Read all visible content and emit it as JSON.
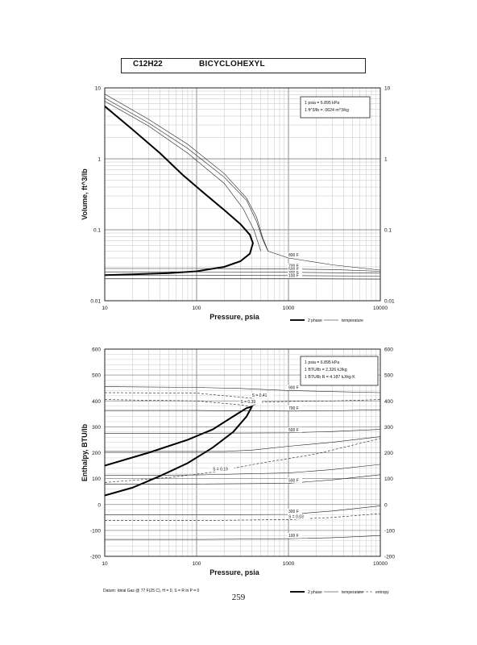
{
  "page": {
    "formula": "C12H22",
    "compound": "BICYCLOHEXYL",
    "page_number": "259"
  },
  "chart_data": [
    {
      "type": "line",
      "xscale": "log",
      "yscale": "log",
      "xlim": [
        10,
        10000
      ],
      "ylim": [
        0.01,
        10
      ],
      "xlabel": "Pressure,  psia",
      "ylabel": "Volume, ft^3/lb",
      "x_ticks": [
        10,
        100,
        1000,
        10000
      ],
      "x_tick_labels": [
        "10",
        "100",
        "1000",
        "10000"
      ],
      "y_ticks": [
        0.01,
        0.1,
        1,
        10
      ],
      "y_tick_labels": [
        "0.01",
        "0.1",
        "1",
        "10"
      ],
      "grid": true,
      "info_box": [
        "1 psia = 6.895 kPa",
        "1 ft^3/lb = .0624 m^3/kg"
      ],
      "legend": [
        "2 phase",
        "temperature"
      ],
      "series": [
        {
          "name": "2 phase",
          "style": "thick",
          "points": [
            [
              10,
              5.5
            ],
            [
              20,
              2.6
            ],
            [
              40,
              1.2
            ],
            [
              70,
              0.6
            ],
            [
              120,
              0.33
            ],
            [
              200,
              0.19
            ],
            [
              300,
              0.12
            ],
            [
              380,
              0.085
            ],
            [
              410,
              0.065
            ],
            [
              380,
              0.046
            ],
            [
              300,
              0.036
            ],
            [
              200,
              0.03
            ],
            [
              100,
              0.026
            ],
            [
              50,
              0.0245
            ],
            [
              20,
              0.0235
            ],
            [
              10,
              0.023
            ]
          ]
        },
        {
          "name": "temperature",
          "label": "800 F",
          "points": [
            [
              10,
              8.2
            ],
            [
              30,
              3.6
            ],
            [
              80,
              1.6
            ],
            [
              200,
              0.62
            ],
            [
              350,
              0.28
            ],
            [
              450,
              0.15
            ],
            [
              520,
              0.08
            ],
            [
              600,
              0.05
            ],
            [
              1000,
              0.04
            ],
            [
              3000,
              0.032
            ],
            [
              10000,
              0.027
            ]
          ]
        },
        {
          "name": "temperature",
          "label": "",
          "points": [
            [
              10,
              7.2
            ],
            [
              30,
              3.2
            ],
            [
              80,
              1.4
            ],
            [
              200,
              0.55
            ],
            [
              350,
              0.26
            ],
            [
              450,
              0.13
            ],
            [
              530,
              0.07
            ],
            [
              600,
              0.05
            ]
          ]
        },
        {
          "name": "temperature",
          "label": "",
          "points": [
            [
              10,
              6.5
            ],
            [
              30,
              2.9
            ],
            [
              80,
              1.2
            ],
            [
              200,
              0.45
            ],
            [
              320,
              0.2
            ],
            [
              420,
              0.1
            ],
            [
              500,
              0.05
            ]
          ]
        },
        {
          "name": "temperature",
          "label": "700 F",
          "points": [
            [
              10,
              0.0285
            ],
            [
              100,
              0.0285
            ],
            [
              500,
              0.0282
            ],
            [
              1000,
              0.028
            ],
            [
              3000,
              0.0275
            ],
            [
              10000,
              0.026
            ]
          ]
        },
        {
          "name": "temperature",
          "label": "500 F",
          "points": [
            [
              10,
              0.0255
            ],
            [
              100,
              0.0255
            ],
            [
              1000,
              0.0252
            ],
            [
              10000,
              0.0245
            ]
          ]
        },
        {
          "name": "temperature",
          "label": "300 F",
          "points": [
            [
              10,
              0.0228
            ],
            [
              100,
              0.0228
            ],
            [
              1000,
              0.0226
            ],
            [
              10000,
              0.0222
            ]
          ]
        },
        {
          "name": "temperature",
          "label": "100 F",
          "points": [
            [
              10,
              0.0206
            ],
            [
              100,
              0.0206
            ],
            [
              1000,
              0.0205
            ],
            [
              10000,
              0.0202
            ]
          ]
        }
      ]
    },
    {
      "type": "line",
      "xscale": "log",
      "yscale": "linear",
      "xlim": [
        10,
        10000
      ],
      "ylim": [
        -200,
        600
      ],
      "xlabel": "Pressure,  psia",
      "ylabel": "Enthalpy, BTU/lb",
      "x_ticks": [
        10,
        100,
        1000,
        10000
      ],
      "x_tick_labels": [
        "10",
        "100",
        "1000",
        "10000"
      ],
      "y_ticks": [
        -200,
        -100,
        0,
        100,
        200,
        300,
        400,
        500,
        600
      ],
      "y_tick_labels": [
        "-200",
        "-100",
        "0",
        "100",
        "200",
        "300",
        "400",
        "500",
        "600"
      ],
      "grid": true,
      "info_box": [
        "1 psia = 6.895 kPa",
        "1 BTU/lb = 2.326 kJ/kg",
        "1 BTU/lb R = 4.187 kJ/kg K"
      ],
      "footnote": "Datum: Ideal Gas @ 77 F(25 C), H = 0, S = R ln P = 0",
      "legend": [
        "2 phase",
        "temperature",
        "entropy"
      ],
      "series": [
        {
          "name": "2 phase",
          "style": "thick",
          "points": [
            [
              10,
              150
            ],
            [
              30,
              200
            ],
            [
              80,
              250
            ],
            [
              150,
              290
            ],
            [
              250,
              340
            ],
            [
              350,
              372
            ],
            [
              400,
              378
            ],
            [
              350,
              340
            ],
            [
              250,
              280
            ],
            [
              150,
              220
            ],
            [
              80,
              160
            ],
            [
              40,
              110
            ],
            [
              20,
              65
            ],
            [
              10,
              35
            ]
          ]
        },
        {
          "name": "temperature",
          "label": "900 F",
          "points": [
            [
              10,
              455
            ],
            [
              100,
              452
            ],
            [
              300,
              448
            ],
            [
              1000,
              440
            ],
            [
              3000,
              436
            ],
            [
              10000,
              432
            ]
          ]
        },
        {
          "name": "temperature",
          "label": "700 F",
          "points": [
            [
              10,
              363
            ],
            [
              100,
              363
            ],
            [
              1000,
              361
            ],
            [
              3000,
              362
            ],
            [
              10000,
              366
            ]
          ]
        },
        {
          "name": "temperature",
          "label": "500 F",
          "points": [
            [
              10,
              275
            ],
            [
              100,
              275
            ],
            [
              1000,
              277
            ],
            [
              3000,
              282
            ],
            [
              10000,
              290
            ]
          ]
        },
        {
          "name": "temperature",
          "label": "",
          "points": [
            [
              10,
              205
            ],
            [
              50,
              205
            ],
            [
              200,
              205
            ],
            [
              400,
              210
            ],
            [
              1000,
              225
            ],
            [
              3000,
              240
            ],
            [
              10000,
              262
            ]
          ]
        },
        {
          "name": "temperature",
          "label": "",
          "points": [
            [
              10,
              112
            ],
            [
              100,
              114
            ],
            [
              1000,
              122
            ],
            [
              3000,
              135
            ],
            [
              10000,
              155
            ]
          ]
        },
        {
          "name": "temperature",
          "label": "500 F",
          "points": [
            [
              10,
              78
            ],
            [
              100,
              79
            ],
            [
              1000,
              82
            ],
            [
              3000,
              95
            ],
            [
              10000,
              115
            ]
          ]
        },
        {
          "name": "temperature",
          "label": "300 F",
          "points": [
            [
              10,
              -40
            ],
            [
              100,
              -40
            ],
            [
              1000,
              -38
            ],
            [
              3000,
              -25
            ],
            [
              10000,
              -5
            ]
          ]
        },
        {
          "name": "temperature",
          "label": "100 F",
          "points": [
            [
              10,
              -135
            ],
            [
              100,
              -135
            ],
            [
              1000,
              -132
            ],
            [
              3000,
              -128
            ],
            [
              10000,
              -120
            ]
          ]
        },
        {
          "name": "entropy",
          "label": "S = 0.41",
          "points": [
            [
              10,
              432
            ],
            [
              100,
              430
            ],
            [
              400,
              410
            ],
            [
              500,
              395
            ],
            [
              1000,
              398
            ],
            [
              3000,
              400
            ],
            [
              10000,
              405
            ]
          ]
        },
        {
          "name": "entropy",
          "label": "S = 0.39",
          "points": [
            [
              10,
              405
            ],
            [
              100,
              400
            ],
            [
              300,
              385
            ],
            [
              380,
              378
            ],
            [
              500,
              395
            ]
          ]
        },
        {
          "name": "entropy",
          "label": "S = 0.19",
          "points": [
            [
              10,
              85
            ],
            [
              50,
              104
            ],
            [
              150,
              125
            ],
            [
              500,
              160
            ],
            [
              2000,
              195
            ],
            [
              10000,
              255
            ]
          ]
        },
        {
          "name": "entropy",
          "label": "S = 0.03",
          "points": [
            [
              10,
              -62
            ],
            [
              100,
              -62
            ],
            [
              1000,
              -58
            ],
            [
              3000,
              -50
            ],
            [
              10000,
              -35
            ]
          ]
        }
      ]
    }
  ]
}
